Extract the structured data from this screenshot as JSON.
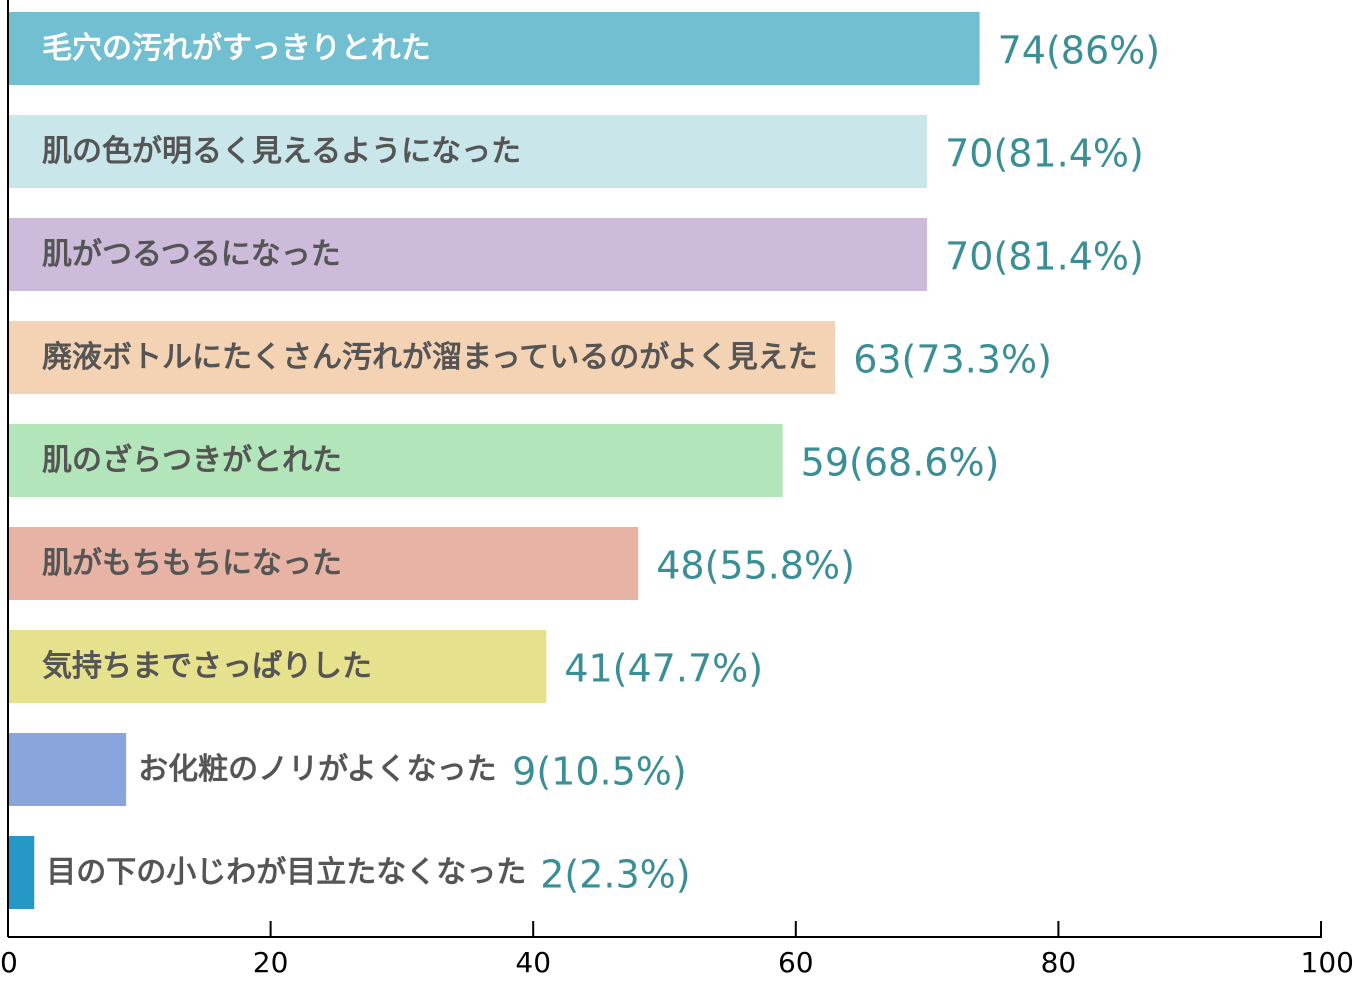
{
  "chart_data": {
    "type": "bar",
    "orientation": "horizontal",
    "categories": [
      "毛穴の汚れがすっきりとれた",
      "肌の色が明るく見えるようになった",
      "肌がつるつるになった",
      "廃液ボトルにたくさん汚れが溜まっているのがよく見えた",
      "肌のざらつきがとれた",
      "肌がもちもちになった",
      "気持ちまでさっぱりした",
      "お化粧のノリがよくなった",
      "目の下の小じわが目立たなくなった"
    ],
    "values": [
      74,
      70,
      70,
      63,
      59,
      48,
      41,
      9,
      2
    ],
    "value_labels": [
      "74(86%)",
      "70(81.4%)",
      "70(81.4%)",
      "63(73.3%)",
      "59(68.6%)",
      "48(55.8%)",
      "41(47.7%)",
      "9(10.5%)",
      "2(2.3%)"
    ],
    "colors": [
      "#72bfd2",
      "#c9e7eb",
      "#ccbbdb",
      "#f4d3b4",
      "#b2e5b9",
      "#e6b3a4",
      "#e6e18c",
      "#8aa5dc",
      "#2698c6"
    ],
    "label_colors": {
      "inside": "#ffffff",
      "default": "#555555",
      "value": "#3a8f96"
    },
    "xlim": [
      0,
      100
    ],
    "x_ticks": [
      0,
      20,
      40,
      60,
      80,
      100
    ],
    "xlabel": "",
    "ylabel": "",
    "title": "",
    "grid": false,
    "legend": "none"
  }
}
